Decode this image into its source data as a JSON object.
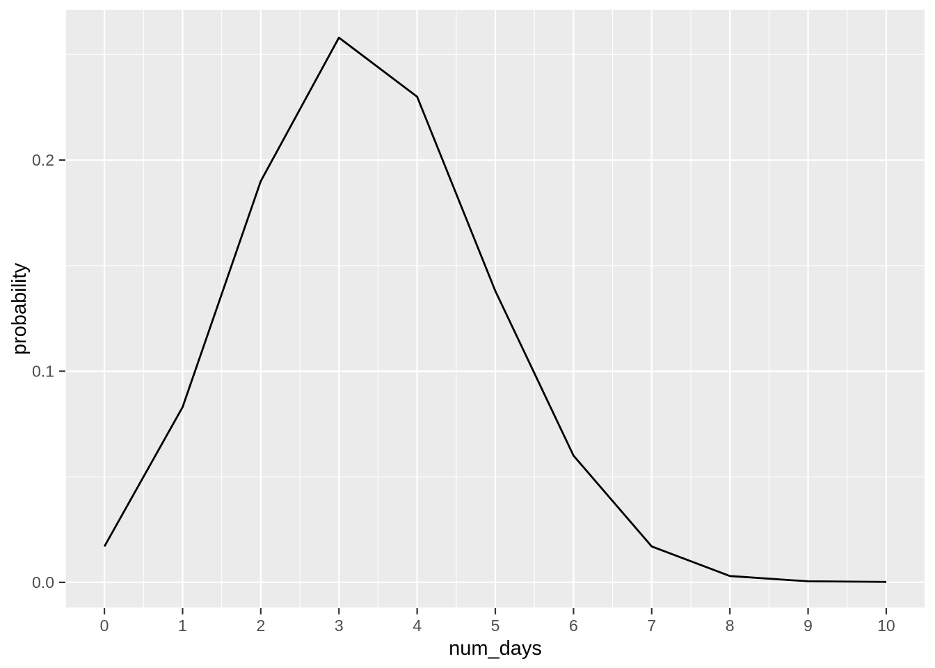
{
  "chart_data": {
    "type": "line",
    "title": "",
    "xlabel": "num_days",
    "ylabel": "probability",
    "x": [
      0,
      1,
      2,
      3,
      4,
      5,
      6,
      7,
      8,
      9,
      10
    ],
    "y": [
      0.017,
      0.083,
      0.19,
      0.258,
      0.23,
      0.138,
      0.06,
      0.017,
      0.003,
      0.0005,
      0.0002
    ],
    "xlim": [
      -0.49,
      10.49
    ],
    "ylim": [
      -0.0119,
      0.2712
    ],
    "x_major_ticks": [
      0,
      1,
      2,
      3,
      4,
      5,
      6,
      7,
      8,
      9,
      10
    ],
    "x_tick_labels": [
      "0",
      "1",
      "2",
      "3",
      "4",
      "5",
      "6",
      "7",
      "8",
      "9",
      "10"
    ],
    "x_minor_ticks": [
      0.5,
      1.5,
      2.5,
      3.5,
      4.5,
      5.5,
      6.5,
      7.5,
      8.5,
      9.5
    ],
    "y_major_ticks": [
      0.0,
      0.1,
      0.2
    ],
    "y_tick_labels": [
      "0.0",
      "0.1",
      "0.2"
    ],
    "y_minor_ticks": [
      0.05,
      0.15,
      0.25
    ],
    "grid": "major+minor",
    "legend": "none",
    "style": {
      "panel_background": "#EBEBEB",
      "grid_color": "#FFFFFF",
      "line_color": "#000000",
      "tick_label_color": "#4D4D4D",
      "axis_title_color": "#000000",
      "tick_mark_color": "#333333"
    }
  }
}
